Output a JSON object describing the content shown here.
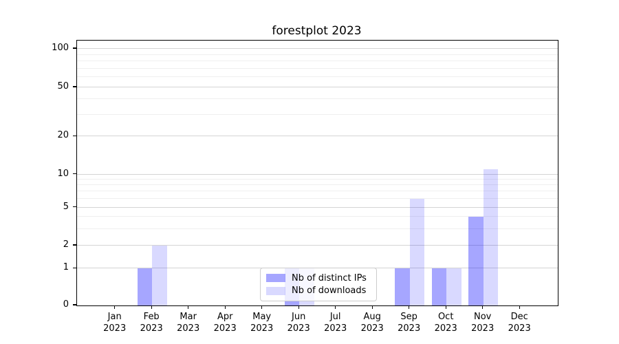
{
  "chart_data": {
    "type": "bar",
    "title": "forestplot 2023",
    "categories": [
      "Jan",
      "Feb",
      "Mar",
      "Apr",
      "May",
      "Jun",
      "Jul",
      "Aug",
      "Sep",
      "Oct",
      "Nov",
      "Dec"
    ],
    "year_label": "2023",
    "series": [
      {
        "name": "Nb of distinct IPs",
        "color": "rgba(0,0,255,0.35)",
        "values": [
          0,
          1,
          0,
          0,
          0,
          1,
          0,
          0,
          1,
          1,
          4,
          0
        ]
      },
      {
        "name": "Nb of downloads",
        "color": "rgba(0,0,255,0.15)",
        "values": [
          0,
          2,
          0,
          0,
          0,
          1,
          0,
          0,
          6,
          1,
          11,
          0
        ]
      }
    ],
    "yticks": [
      0,
      1,
      2,
      5,
      10,
      20,
      50,
      100
    ],
    "minor_yticks": [
      3,
      4,
      6,
      7,
      8,
      9,
      30,
      40,
      60,
      70,
      80,
      90
    ],
    "ylim": [
      0,
      100
    ],
    "xlabel": "",
    "ylabel": "",
    "grid": "both",
    "legend_position": "lower center"
  }
}
